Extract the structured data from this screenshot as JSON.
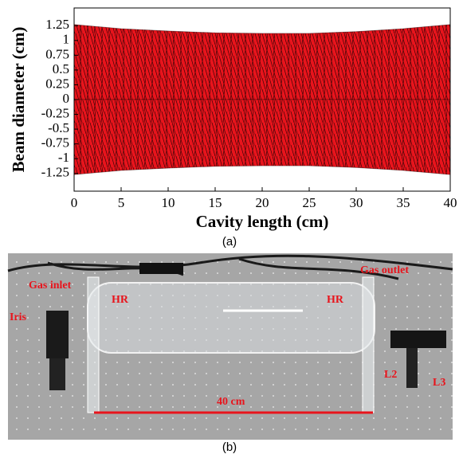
{
  "chart_data": {
    "type": "band",
    "x_label": "Cavity length (cm)",
    "y_label": "Beam diameter (cm)",
    "x": [
      0,
      5,
      10,
      15,
      20,
      25,
      30,
      35,
      40
    ],
    "upper": [
      1.27,
      1.2,
      1.16,
      1.13,
      1.12,
      1.12,
      1.15,
      1.2,
      1.27
    ],
    "lower": [
      -1.27,
      -1.2,
      -1.16,
      -1.13,
      -1.12,
      -1.12,
      -1.15,
      -1.2,
      -1.27
    ],
    "color": "#e8141c",
    "ray_color": "#000000",
    "xlim": [
      0,
      40
    ],
    "xticks": [
      0,
      5,
      10,
      15,
      20,
      25,
      30,
      35,
      40
    ],
    "ylim": [
      -1.55,
      1.55
    ],
    "yticks": [
      1.25,
      1,
      0.75,
      0.5,
      0.25,
      0,
      -0.25,
      -0.5,
      -0.75,
      -1,
      -1.25
    ]
  },
  "photo": {
    "labels": {
      "gas_inlet": "Gas inlet",
      "gas_outlet": "Gas outlet",
      "iris": "Iris",
      "hr_left": "HR",
      "hr_right": "HR",
      "l2": "L2",
      "l3": "L3",
      "length": "40 cm"
    }
  },
  "captions": [
    "(a)",
    "(b)"
  ]
}
